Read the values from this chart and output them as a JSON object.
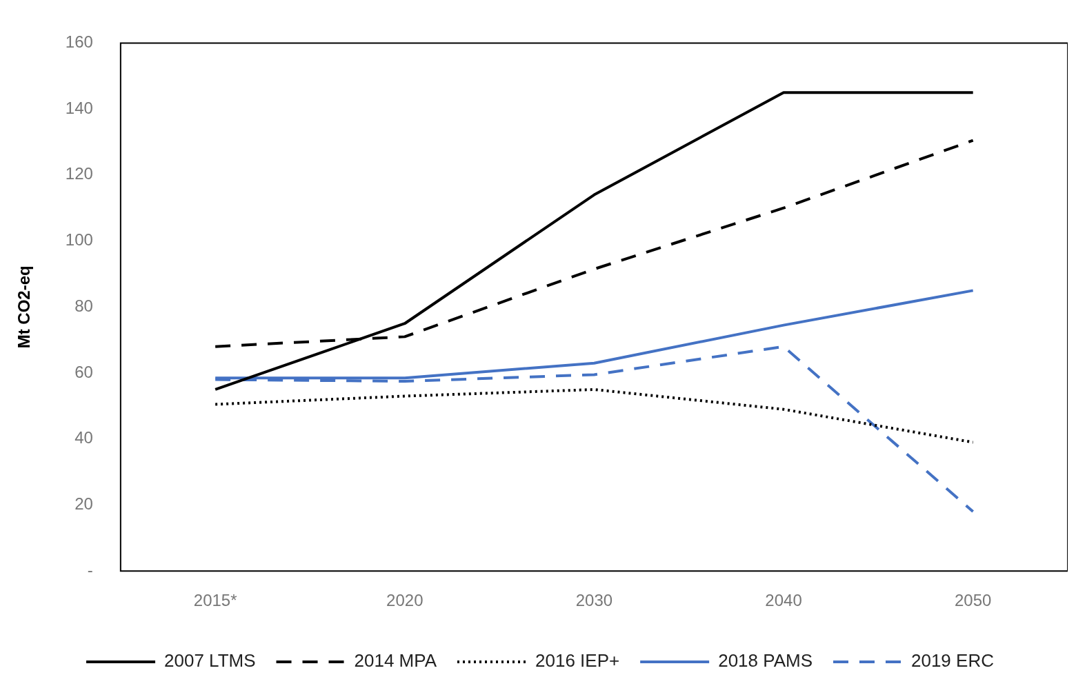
{
  "chart_data": {
    "type": "line",
    "ylabel": "Mt CO2-eq",
    "categories": [
      "2015*",
      "2020",
      "2030",
      "2040",
      "2050"
    ],
    "series": [
      {
        "name": "2007 LTMS",
        "color": "#000000",
        "line_style": "solid",
        "values": [
          55,
          75,
          114,
          145,
          145
        ]
      },
      {
        "name": "2014 MPA",
        "color": "#000000",
        "line_style": "dashed",
        "values": [
          68,
          71,
          91.5,
          110,
          130.5
        ]
      },
      {
        "name": "2016 IEP+",
        "color": "#000000",
        "line_style": "dotted",
        "values": [
          50.5,
          53,
          55,
          49,
          39
        ]
      },
      {
        "name": "2018 PAMS",
        "color": "#4472c4",
        "line_style": "solid",
        "values": [
          58.5,
          58.5,
          63,
          74.5,
          85
        ]
      },
      {
        "name": "2019 ERC",
        "color": "#4472c4",
        "line_style": "dashed",
        "values": [
          58,
          57.5,
          59.5,
          68,
          18
        ]
      }
    ],
    "ylim": [
      0,
      160
    ],
    "yticks": [
      {
        "value": 0,
        "label": "-"
      },
      20,
      40,
      60,
      80,
      100,
      120,
      140,
      160
    ],
    "grid": false,
    "legend": "bottom",
    "marker": "none"
  }
}
